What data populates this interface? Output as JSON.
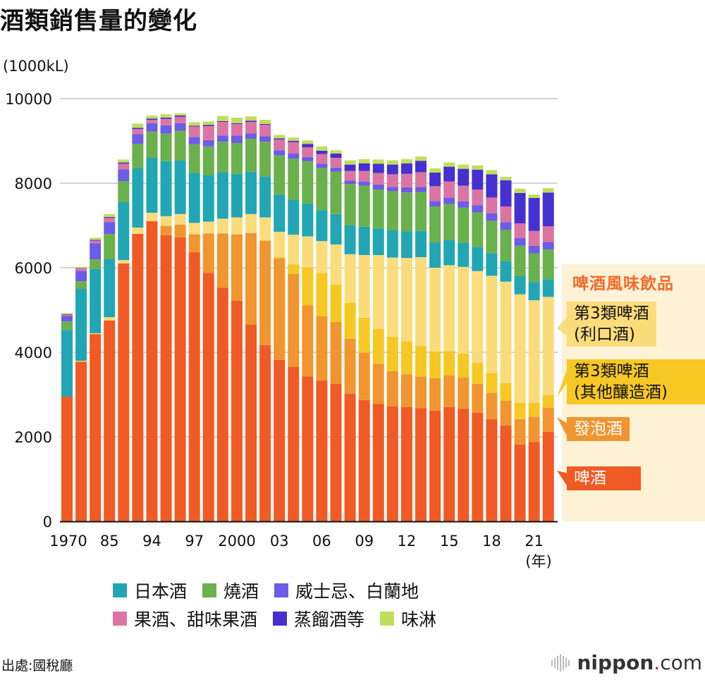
{
  "title": "酒類銷售量的變化",
  "unit_label": "(1000kL)",
  "source": "出處:國稅廳",
  "brand": {
    "name": "nippon",
    "dot": ".",
    "suffix": "com"
  },
  "annotation_panel": {
    "title": "啤酒風味飲品",
    "callouts": [
      {
        "key": "third_liqueur",
        "line1": "第3類啤酒",
        "line2": "(利口酒)"
      },
      {
        "key": "third_other",
        "line1": "第3類啤酒",
        "line2": "(其他釀造酒)"
      },
      {
        "key": "happoshu",
        "line1": "發泡酒",
        "line2": ""
      },
      {
        "key": "beer",
        "line1": "啤酒",
        "line2": ""
      }
    ]
  },
  "legend": [
    {
      "label": "日本酒",
      "color": "#22a6b3"
    },
    {
      "label": "燒酒",
      "color": "#6ab04c"
    },
    {
      "label": "威士忌、白蘭地",
      "color": "#6c5ce7"
    },
    {
      "label": "果酒、甜味果酒",
      "color": "#dc74a3"
    },
    {
      "label": "蒸餾酒等",
      "color": "#4630d0"
    },
    {
      "label": "味淋",
      "color": "#bfdf5a"
    }
  ],
  "chart_data": {
    "type": "bar",
    "stacked": true,
    "title": "酒類銷售量的變化",
    "ylabel": "(1000kL)",
    "xlabel": "(年)",
    "ylim": [
      0,
      10000
    ],
    "yticks": [
      0,
      2000,
      4000,
      6000,
      8000,
      10000
    ],
    "grid": true,
    "legend_position": "bottom",
    "categories": [
      "1970",
      "1975",
      "1980",
      "1985",
      "1990",
      "1993",
      "1994",
      "1995",
      "1996",
      "1997",
      "1998",
      "1999",
      "2000",
      "2001",
      "2002",
      "2003",
      "2004",
      "2005",
      "2006",
      "2007",
      "2008",
      "2009",
      "2010",
      "2011",
      "2012",
      "2013",
      "2014",
      "2015",
      "2016",
      "2017",
      "2018",
      "2019",
      "2020",
      "2021",
      "2022"
    ],
    "tick_labels": [
      {
        "index": 0,
        "label": "1970"
      },
      {
        "index": 3,
        "label": "85"
      },
      {
        "index": 6,
        "label": "94"
      },
      {
        "index": 9,
        "label": "97"
      },
      {
        "index": 12,
        "label": "2000"
      },
      {
        "index": 15,
        "label": "03"
      },
      {
        "index": 18,
        "label": "06"
      },
      {
        "index": 21,
        "label": "09"
      },
      {
        "index": 24,
        "label": "12"
      },
      {
        "index": 27,
        "label": "15"
      },
      {
        "index": 30,
        "label": "18"
      },
      {
        "index": 33,
        "label": "21"
      }
    ],
    "series": [
      {
        "name": "啤酒",
        "key": "beer",
        "color": "#f05a25",
        "values": [
          2950,
          3780,
          4430,
          4750,
          6100,
          6800,
          7100,
          6770,
          6720,
          6370,
          5880,
          5530,
          5220,
          4650,
          4170,
          3820,
          3650,
          3430,
          3330,
          3250,
          3020,
          2870,
          2780,
          2720,
          2700,
          2680,
          2620,
          2700,
          2670,
          2570,
          2420,
          2270,
          1820,
          1880,
          2120
        ]
      },
      {
        "name": "發泡酒",
        "key": "happoshu",
        "color": "#f0952f",
        "values": [
          0,
          0,
          0,
          0,
          0,
          0,
          0,
          220,
          300,
          420,
          930,
          1280,
          1570,
          2170,
          2470,
          2400,
          2200,
          1680,
          1520,
          1470,
          1300,
          1120,
          950,
          830,
          780,
          750,
          770,
          750,
          730,
          680,
          620,
          580,
          600,
          600,
          570
        ]
      },
      {
        "name": "第3類啤酒(其他釀造酒)",
        "key": "third_other",
        "color": "#f7c823",
        "values": [
          0,
          0,
          0,
          0,
          0,
          0,
          0,
          0,
          0,
          0,
          0,
          0,
          0,
          0,
          0,
          30,
          230,
          900,
          1030,
          880,
          850,
          830,
          820,
          820,
          780,
          720,
          630,
          580,
          570,
          500,
          470,
          420,
          380,
          320,
          300
        ]
      },
      {
        "name": "第3類啤酒(利口酒)",
        "key": "third_liqueur",
        "color": "#fbdc7b",
        "values": [
          0,
          20,
          20,
          80,
          80,
          150,
          200,
          230,
          250,
          270,
          280,
          350,
          400,
          450,
          550,
          600,
          700,
          730,
          750,
          950,
          1150,
          1480,
          1750,
          1870,
          1970,
          2100,
          1980,
          2030,
          2050,
          2170,
          2300,
          2400,
          2570,
          2430,
          2320
        ]
      },
      {
        "name": "日本酒",
        "key": "sake",
        "color": "#22a6b3",
        "values": [
          1580,
          1700,
          1520,
          1370,
          1370,
          1400,
          1300,
          1300,
          1270,
          1180,
          1100,
          1100,
          1030,
          1000,
          970,
          880,
          820,
          780,
          730,
          720,
          680,
          670,
          630,
          650,
          630,
          620,
          600,
          600,
          570,
          570,
          530,
          480,
          430,
          430,
          420
        ]
      },
      {
        "name": "燒酒",
        "key": "shochu",
        "color": "#6ab04c",
        "values": [
          200,
          180,
          230,
          600,
          500,
          580,
          620,
          650,
          700,
          680,
          680,
          720,
          730,
          780,
          820,
          930,
          980,
          1000,
          1000,
          1000,
          980,
          970,
          920,
          920,
          920,
          920,
          850,
          850,
          830,
          820,
          770,
          750,
          720,
          680,
          700
        ]
      },
      {
        "name": "威士忌、白蘭地",
        "key": "whisky",
        "color": "#6c5ce7",
        "values": [
          130,
          250,
          380,
          280,
          280,
          230,
          200,
          200,
          180,
          170,
          150,
          150,
          180,
          130,
          130,
          120,
          120,
          100,
          100,
          100,
          80,
          100,
          120,
          100,
          120,
          120,
          130,
          150,
          150,
          170,
          180,
          180,
          180,
          180,
          180
        ]
      },
      {
        "name": "果酒、甜味果酒",
        "key": "fruit",
        "color": "#dc74a3",
        "values": [
          30,
          50,
          60,
          100,
          130,
          120,
          80,
          150,
          150,
          250,
          330,
          320,
          270,
          270,
          270,
          250,
          270,
          230,
          230,
          230,
          230,
          250,
          270,
          300,
          320,
          350,
          350,
          380,
          370,
          370,
          370,
          370,
          350,
          350,
          370
        ]
      },
      {
        "name": "蒸餾酒等",
        "key": "distilled",
        "color": "#4630d0",
        "values": [
          10,
          10,
          20,
          20,
          30,
          30,
          30,
          30,
          30,
          20,
          30,
          20,
          20,
          30,
          20,
          30,
          30,
          80,
          80,
          100,
          150,
          180,
          220,
          230,
          250,
          270,
          320,
          350,
          400,
          470,
          550,
          620,
          720,
          780,
          800
        ]
      },
      {
        "name": "味淋",
        "key": "mirin",
        "color": "#bfdf5a",
        "values": [
          30,
          30,
          50,
          70,
          70,
          100,
          70,
          80,
          50,
          80,
          80,
          120,
          130,
          100,
          100,
          80,
          80,
          80,
          100,
          80,
          100,
          100,
          100,
          100,
          100,
          100,
          100,
          100,
          100,
          100,
          100,
          80,
          100,
          80,
          100
        ]
      }
    ]
  }
}
